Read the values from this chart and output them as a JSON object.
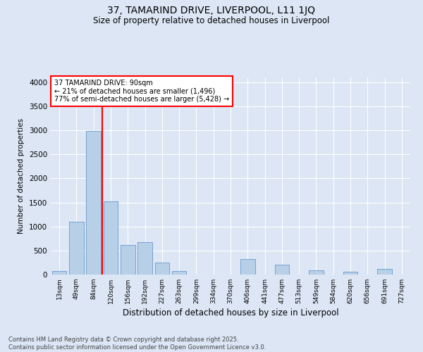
{
  "title1": "37, TAMARIND DRIVE, LIVERPOOL, L11 1JQ",
  "title2": "Size of property relative to detached houses in Liverpool",
  "xlabel": "Distribution of detached houses by size in Liverpool",
  "ylabel": "Number of detached properties",
  "annotation_title": "37 TAMARIND DRIVE: 90sqm",
  "annotation_line1": "← 21% of detached houses are smaller (1,496)",
  "annotation_line2": "77% of semi-detached houses are larger (5,428) →",
  "footer1": "Contains HM Land Registry data © Crown copyright and database right 2025.",
  "footer2": "Contains public sector information licensed under the Open Government Licence v3.0.",
  "categories": [
    "13sqm",
    "49sqm",
    "84sqm",
    "120sqm",
    "156sqm",
    "192sqm",
    "227sqm",
    "263sqm",
    "299sqm",
    "334sqm",
    "370sqm",
    "406sqm",
    "441sqm",
    "477sqm",
    "513sqm",
    "549sqm",
    "584sqm",
    "620sqm",
    "656sqm",
    "691sqm",
    "727sqm"
  ],
  "values": [
    80,
    1100,
    2980,
    1520,
    620,
    670,
    250,
    80,
    0,
    0,
    0,
    325,
    0,
    200,
    0,
    95,
    0,
    60,
    0,
    110,
    0
  ],
  "bar_color": "#b8cfe8",
  "bar_edge_color": "#6699cc",
  "vline_color": "red",
  "vline_x_idx": 2,
  "bg_color": "#dce6f5",
  "grid_color": "white",
  "annotation_box_color": "white",
  "annotation_box_edge": "red",
  "ylim": [
    0,
    4100
  ],
  "yticks": [
    0,
    500,
    1000,
    1500,
    2000,
    2500,
    3000,
    3500,
    4000
  ]
}
